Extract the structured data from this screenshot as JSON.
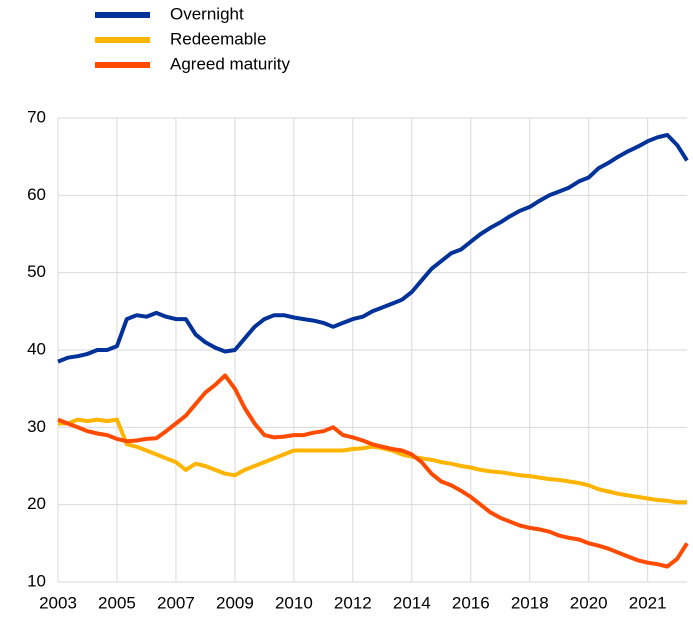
{
  "chart_data": {
    "type": "line",
    "categories": [
      "2003",
      null,
      null,
      null,
      null,
      null,
      "2005",
      null,
      null,
      null,
      null,
      null,
      "2007",
      null,
      null,
      null,
      null,
      null,
      "2009",
      null,
      null,
      null,
      null,
      null,
      "2010",
      null,
      null,
      null,
      null,
      null,
      "2012",
      null,
      null,
      null,
      null,
      null,
      "2014",
      null,
      null,
      null,
      null,
      null,
      "2016",
      null,
      null,
      null,
      null,
      null,
      "2018",
      null,
      null,
      null,
      null,
      null,
      "2020",
      null,
      null,
      null,
      null,
      null,
      "2021",
      null,
      null,
      null,
      null
    ],
    "series": [
      {
        "name": "Overnight",
        "color": "#003299",
        "values": [
          38.5,
          39,
          39.2,
          39.5,
          40,
          40,
          40.5,
          44,
          44.5,
          44.3,
          44.8,
          44.3,
          44,
          44,
          42,
          41,
          40.3,
          39.8,
          40,
          41.5,
          43,
          44,
          44.5,
          44.5,
          44.2,
          44,
          43.8,
          43.5,
          43,
          43.5,
          44,
          44.3,
          45,
          45.5,
          46,
          46.5,
          47.5,
          49,
          50.5,
          51.5,
          52.5,
          53,
          54,
          55,
          55.8,
          56.5,
          57.3,
          58,
          58.5,
          59.3,
          60,
          60.5,
          61,
          61.8,
          62.3,
          63.5,
          64.2,
          65,
          65.7,
          66.3,
          67,
          67.5,
          67.8,
          66.5,
          64.5
        ]
      },
      {
        "name": "Redeemable",
        "color": "#ffb400",
        "values": [
          30.5,
          30.5,
          31,
          30.8,
          31,
          30.8,
          31,
          27.8,
          27.5,
          27,
          26.5,
          26,
          25.5,
          24.5,
          25.3,
          25,
          24.5,
          24,
          23.8,
          24.5,
          25,
          25.5,
          26,
          26.5,
          27,
          27,
          27,
          27,
          27,
          27,
          27.2,
          27.3,
          27.5,
          27.3,
          27,
          26.5,
          26.2,
          26,
          25.8,
          25.5,
          25.3,
          25,
          24.8,
          24.5,
          24.3,
          24.2,
          24,
          23.8,
          23.7,
          23.5,
          23.3,
          23.2,
          23,
          22.8,
          22.5,
          22,
          21.7,
          21.4,
          21.2,
          21,
          20.8,
          20.6,
          20.5,
          20.3,
          20.3
        ]
      },
      {
        "name": "Agreed maturity",
        "color": "#ff4b00",
        "values": [
          31,
          30.5,
          30,
          29.5,
          29.2,
          29,
          28.5,
          28.2,
          28.3,
          28.5,
          28.6,
          29.5,
          30.5,
          31.5,
          33,
          34.5,
          35.5,
          36.7,
          35,
          32.5,
          30.5,
          29,
          28.7,
          28.8,
          29,
          29,
          29.3,
          29.5,
          30,
          29,
          28.7,
          28.3,
          27.8,
          27.5,
          27.2,
          27,
          26.5,
          25.5,
          24,
          23,
          22.5,
          21.8,
          21,
          20,
          19,
          18.3,
          17.8,
          17.3,
          17,
          16.8,
          16.5,
          16,
          15.7,
          15.5,
          15,
          14.7,
          14.3,
          13.8,
          13.3,
          12.8,
          12.5,
          12.3,
          12,
          13,
          15
        ]
      }
    ],
    "ylim": [
      10,
      70
    ],
    "yticks": [
      10,
      20,
      30,
      40,
      50,
      60,
      70
    ],
    "grid": true
  }
}
